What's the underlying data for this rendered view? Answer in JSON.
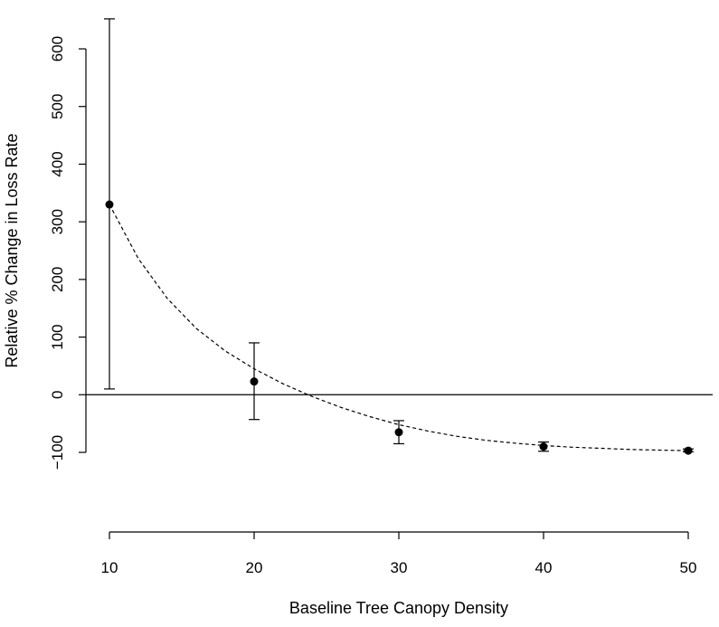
{
  "chart_data": {
    "type": "scatter",
    "xlabel": "Baseline Tree Canopy Density",
    "ylabel": "Relative % Change in Loss Rate",
    "xlim": [
      10,
      50
    ],
    "ylim": [
      -100,
      600
    ],
    "x_ticks": [
      "10",
      "20",
      "30",
      "40",
      "50"
    ],
    "y_ticks": [
      "−100",
      "0",
      "100",
      "200",
      "300",
      "400",
      "500",
      "600"
    ],
    "grid": false,
    "reference_line_y": 0,
    "series": [
      {
        "x": [
          10,
          20,
          30,
          40,
          50
        ],
        "y": [
          330,
          23,
          -65,
          -90,
          -97
        ],
        "lower": [
          10,
          -43,
          -85,
          -98,
          -99
        ],
        "upper": [
          652,
          90,
          -45,
          -82,
          -94
        ]
      }
    ],
    "fit_curve": {
      "style": "dashed",
      "x": [
        10,
        12,
        14,
        16,
        18,
        20,
        22,
        24,
        26,
        28,
        30,
        32,
        34,
        36,
        38,
        40,
        42,
        44,
        46,
        48,
        50
      ],
      "y": [
        330,
        236,
        167,
        115,
        76,
        45,
        19,
        -3,
        -22,
        -38,
        -52,
        -63,
        -72,
        -79,
        -84,
        -88,
        -91,
        -93,
        -95,
        -96,
        -97
      ]
    }
  }
}
